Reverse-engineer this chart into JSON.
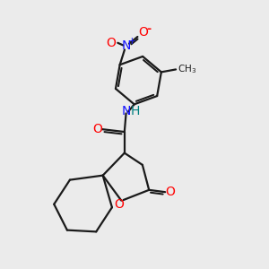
{
  "bg_color": "#ebebeb",
  "bond_color": "#1a1a1a",
  "N_color": "#1414ff",
  "O_color": "#ff0000",
  "H_color": "#008080",
  "lw": 1.6,
  "xlim": [
    0,
    10
  ],
  "ylim": [
    0,
    10
  ]
}
